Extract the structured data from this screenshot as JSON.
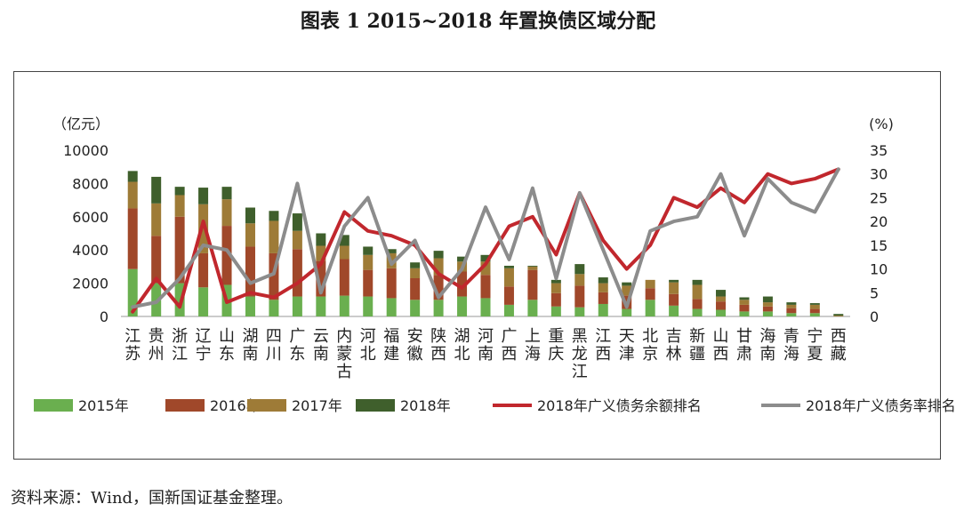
{
  "page": {
    "title": "图表 1  2015~2018 年置换债区域分配",
    "source": "资料来源：Wind，国新国证基金整理。"
  },
  "chart_data": {
    "type": "bar",
    "stacked": true,
    "categories": [
      "江苏",
      "贵州",
      "浙江",
      "辽宁",
      "山东",
      "湖南",
      "四川",
      "广东",
      "云南",
      "内蒙古",
      "河北",
      "福建",
      "安徽",
      "陕西",
      "湖北",
      "河南",
      "广西",
      "上海",
      "重庆",
      "黑龙江",
      "江西",
      "天津",
      "北京",
      "吉林",
      "新疆",
      "山西",
      "甘肃",
      "海南",
      "青海",
      "宁夏",
      "西藏"
    ],
    "series": [
      {
        "name": "2015年",
        "axis": "left",
        "kind": "bar",
        "color": "#6aaf4f",
        "values": [
          2850,
          2000,
          2000,
          1750,
          1900,
          1200,
          1000,
          1200,
          1200,
          1250,
          1200,
          1100,
          1000,
          1000,
          1200,
          1100,
          700,
          1000,
          600,
          550,
          750,
          450,
          1000,
          650,
          450,
          400,
          300,
          300,
          200,
          200,
          0
        ]
      },
      {
        "name": "2016年",
        "axis": "left",
        "kind": "bar",
        "color": "#a0482a",
        "values": [
          3650,
          2850,
          4000,
          2050,
          3550,
          3000,
          2800,
          2850,
          2150,
          2200,
          1600,
          1800,
          1300,
          1500,
          1500,
          1400,
          1100,
          1800,
          800,
          1300,
          700,
          800,
          700,
          700,
          600,
          500,
          400,
          300,
          300,
          250,
          0
        ]
      },
      {
        "name": "2017年",
        "axis": "left",
        "kind": "bar",
        "color": "#9e7b37",
        "values": [
          1600,
          1950,
          1300,
          2950,
          1600,
          1400,
          1950,
          1100,
          900,
          800,
          900,
          900,
          600,
          1000,
          600,
          800,
          1100,
          200,
          600,
          700,
          550,
          600,
          500,
          700,
          850,
          300,
          300,
          250,
          200,
          250,
          50
        ]
      },
      {
        "name": "2018年",
        "axis": "left",
        "kind": "bar",
        "color": "#3f5f2c",
        "values": [
          650,
          1600,
          500,
          1000,
          750,
          950,
          600,
          1050,
          750,
          650,
          500,
          250,
          350,
          450,
          300,
          400,
          150,
          50,
          200,
          600,
          350,
          200,
          0,
          150,
          300,
          400,
          150,
          350,
          150,
          100,
          100
        ]
      },
      {
        "name": "2018年广义债务余额排名",
        "axis": "right",
        "kind": "line",
        "color": "#c1272d",
        "values": [
          1,
          8,
          2,
          20,
          3,
          5,
          4,
          7,
          11,
          22,
          18,
          17,
          15,
          9,
          6,
          11,
          19,
          21,
          13,
          26,
          16,
          10,
          15,
          25,
          23,
          27,
          24,
          30,
          28,
          29,
          31
        ]
      },
      {
        "name": "2018年广义债务率排名",
        "axis": "right",
        "kind": "line",
        "color": "#8c8c8c",
        "values": [
          2,
          3,
          8,
          15,
          14,
          7,
          9,
          28,
          5,
          19,
          25,
          11,
          16,
          4,
          10,
          23,
          12,
          27,
          8,
          26,
          14,
          2,
          18,
          20,
          21,
          30,
          17,
          29,
          24,
          22,
          31
        ]
      }
    ],
    "ylim_left": [
      0,
      10000
    ],
    "yticks_left": [
      0,
      2000,
      4000,
      6000,
      8000,
      10000
    ],
    "ylabel_left": "（亿元）",
    "ylim_right": [
      0,
      35
    ],
    "yticks_right": [
      0,
      5,
      10,
      15,
      20,
      25,
      30,
      35
    ],
    "ylabel_right": "(%)",
    "legend_position": "bottom"
  }
}
